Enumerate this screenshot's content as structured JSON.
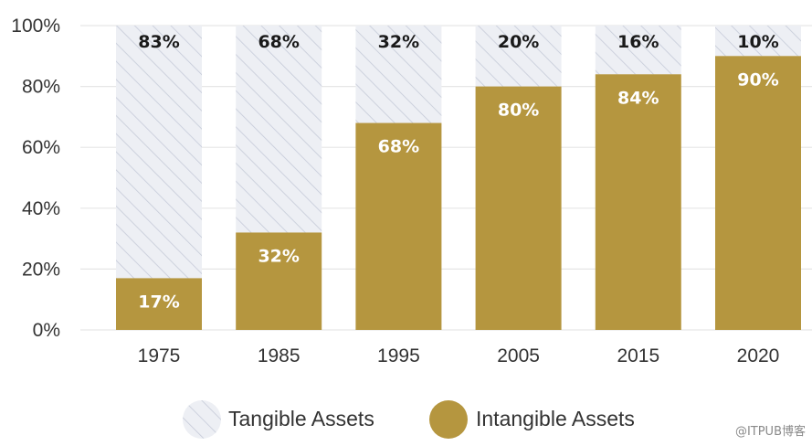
{
  "chart_data": {
    "type": "bar",
    "stacked": true,
    "categories": [
      "1975",
      "1985",
      "1995",
      "2005",
      "2015",
      "2020"
    ],
    "series": [
      {
        "name": "Intangible Assets",
        "values": [
          17,
          32,
          68,
          80,
          84,
          90
        ],
        "labels": [
          "17%",
          "32%",
          "68%",
          "80%",
          "84%",
          "90%"
        ],
        "color": "#b5963f",
        "pattern": "solid"
      },
      {
        "name": "Tangible Assets",
        "values": [
          83,
          68,
          32,
          20,
          16,
          10
        ],
        "labels": [
          "83%",
          "68%",
          "32%",
          "20%",
          "16%",
          "10%"
        ],
        "color": "#edeff4",
        "pattern": "hatched"
      }
    ],
    "ylim": [
      0,
      100
    ],
    "yticks": [
      0,
      20,
      40,
      60,
      80,
      100
    ],
    "ytick_labels": [
      "0%",
      "20%",
      "40%",
      "60%",
      "80%",
      "100%"
    ],
    "grid": true,
    "legend": {
      "position": "bottom",
      "items": [
        "Tangible Assets",
        "Intangible Assets"
      ]
    },
    "title": "",
    "xlabel": "",
    "ylabel": ""
  },
  "colors": {
    "intangible": "#b5963f",
    "tangible_bg": "#edeff4",
    "tangible_hatch": "#c5cad8",
    "grid": "#e6e6e6",
    "label_dark": "#1a1a1a",
    "label_light": "#ffffff"
  },
  "watermark": "@ITPUB博客"
}
